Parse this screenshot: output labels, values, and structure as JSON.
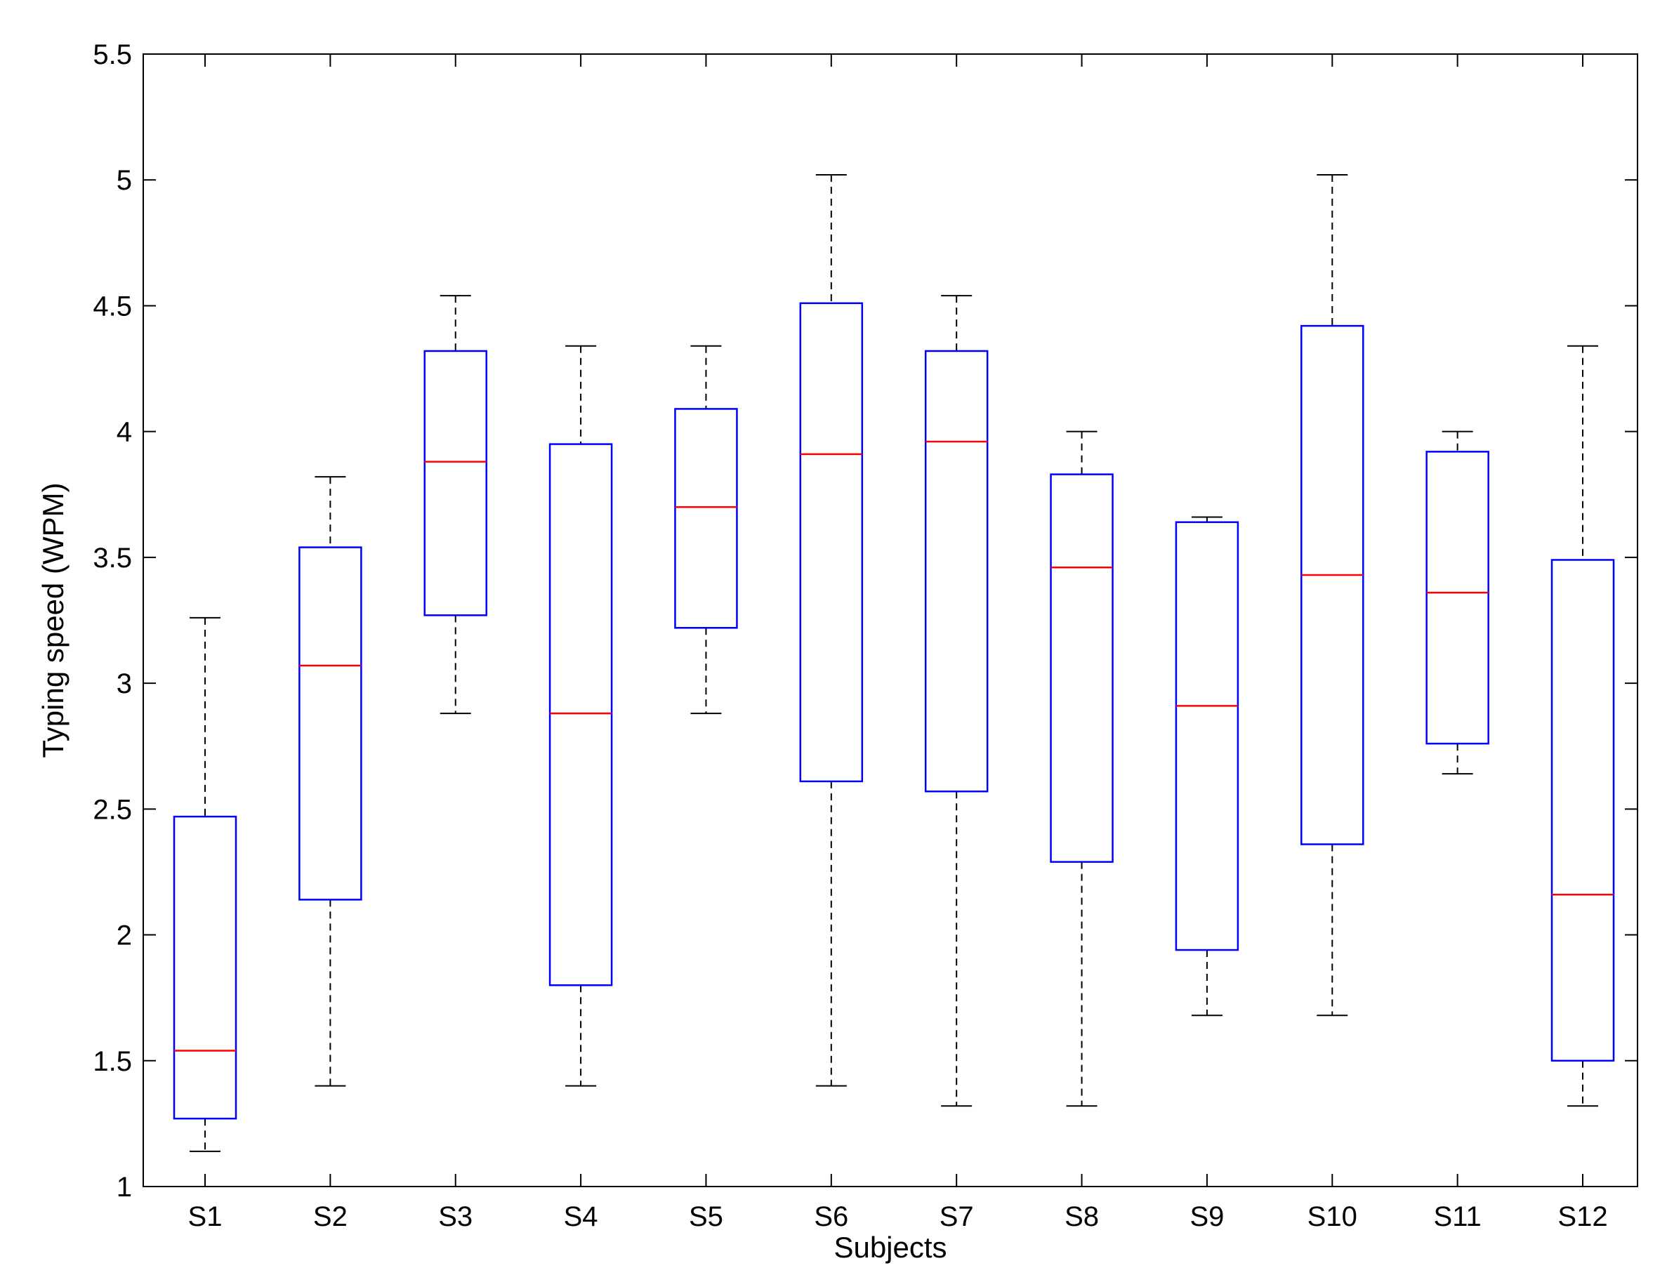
{
  "chart_data": {
    "type": "box",
    "title": "",
    "xlabel": "Subjects",
    "ylabel": "Typing speed (WPM)",
    "ylim": [
      1,
      5.5
    ],
    "yticks": [
      "1",
      "1.5",
      "2",
      "2.5",
      "3",
      "3.5",
      "4",
      "4.5",
      "5",
      "5.5"
    ],
    "categories": [
      "S1",
      "S2",
      "S3",
      "S4",
      "S5",
      "S6",
      "S7",
      "S8",
      "S9",
      "S10",
      "S11",
      "S12"
    ],
    "boxes": [
      {
        "min": 1.14,
        "q1": 1.27,
        "median": 1.54,
        "q3": 2.47,
        "max": 3.26
      },
      {
        "min": 1.4,
        "q1": 2.14,
        "median": 3.07,
        "q3": 3.54,
        "max": 3.82
      },
      {
        "min": 2.88,
        "q1": 3.27,
        "median": 3.88,
        "q3": 4.32,
        "max": 4.54
      },
      {
        "min": 1.4,
        "q1": 1.8,
        "median": 2.88,
        "q3": 3.95,
        "max": 4.34
      },
      {
        "min": 2.88,
        "q1": 3.22,
        "median": 3.7,
        "q3": 4.09,
        "max": 4.34
      },
      {
        "min": 1.4,
        "q1": 2.61,
        "median": 3.91,
        "q3": 4.51,
        "max": 5.02
      },
      {
        "min": 1.32,
        "q1": 2.57,
        "median": 3.96,
        "q3": 4.32,
        "max": 4.54
      },
      {
        "min": 1.32,
        "q1": 2.29,
        "median": 3.46,
        "q3": 3.83,
        "max": 4.0
      },
      {
        "min": 1.68,
        "q1": 1.94,
        "median": 2.91,
        "q3": 3.64,
        "max": 3.66
      },
      {
        "min": 1.68,
        "q1": 2.36,
        "median": 3.43,
        "q3": 4.42,
        "max": 5.02
      },
      {
        "min": 2.64,
        "q1": 2.76,
        "median": 3.36,
        "q3": 3.92,
        "max": 4.0
      },
      {
        "min": 1.32,
        "q1": 1.5,
        "median": 2.16,
        "q3": 3.49,
        "max": 4.34
      }
    ],
    "grid": false,
    "colors": {
      "box": "#0000ff",
      "median": "#ff0000",
      "whisker": "#000000",
      "axes": "#000000"
    }
  }
}
